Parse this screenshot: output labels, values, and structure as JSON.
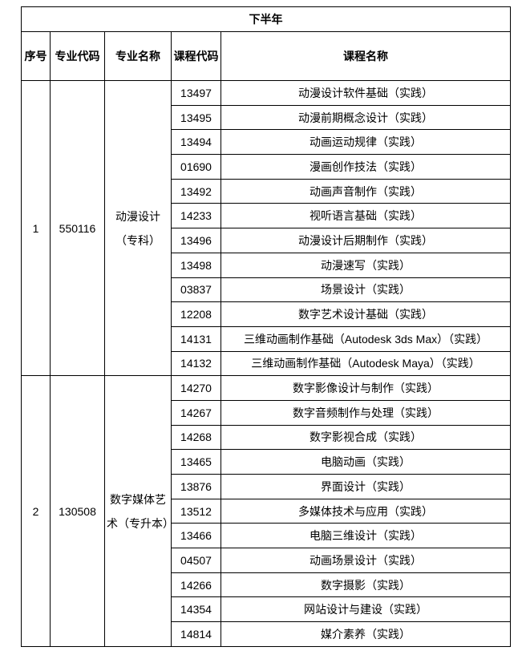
{
  "title": "下半年",
  "headers": {
    "seq": "序号",
    "major_code": "专业代码",
    "major_name": "专业名称",
    "course_code": "课程代码",
    "course_name": "课程名称"
  },
  "groups": [
    {
      "seq": "1",
      "major_code": "550116",
      "major_name": "动漫设计（专科）",
      "courses": [
        [
          "13497",
          "动漫设计软件基础（实践）"
        ],
        [
          "13495",
          "动漫前期概念设计（实践）"
        ],
        [
          "13494",
          "动画运动规律（实践）"
        ],
        [
          "01690",
          "漫画创作技法（实践）"
        ],
        [
          "13492",
          "动画声音制作（实践）"
        ],
        [
          "14233",
          "视听语言基础（实践）"
        ],
        [
          "13496",
          "动漫设计后期制作（实践）"
        ],
        [
          "13498",
          "动漫速写（实践）"
        ],
        [
          "03837",
          "场景设计（实践）"
        ],
        [
          "12208",
          "数字艺术设计基础（实践）"
        ],
        [
          "14131",
          "三维动画制作基础（Autodesk 3ds Max）（实践）"
        ],
        [
          "14132",
          "三维动画制作基础（Autodesk Maya）（实践）"
        ]
      ]
    },
    {
      "seq": "2",
      "major_code": "130508",
      "major_name": "数字媒体艺术（专升本）",
      "courses": [
        [
          "14270",
          "数字影像设计与制作（实践）"
        ],
        [
          "14267",
          "数字音频制作与处理（实践）"
        ],
        [
          "14268",
          "数字影视合成（实践）"
        ],
        [
          "13465",
          "电脑动画（实践）"
        ],
        [
          "13876",
          "界面设计（实践）"
        ],
        [
          "13512",
          "多媒体技术与应用（实践）"
        ],
        [
          "13466",
          "电脑三维设计（实践）"
        ],
        [
          "04507",
          "动画场景设计（实践）"
        ],
        [
          "14266",
          "数字摄影（实践）"
        ],
        [
          "14354",
          "网站设计与建设（实践）"
        ],
        [
          "14814",
          "媒介素养（实践）"
        ]
      ]
    }
  ]
}
